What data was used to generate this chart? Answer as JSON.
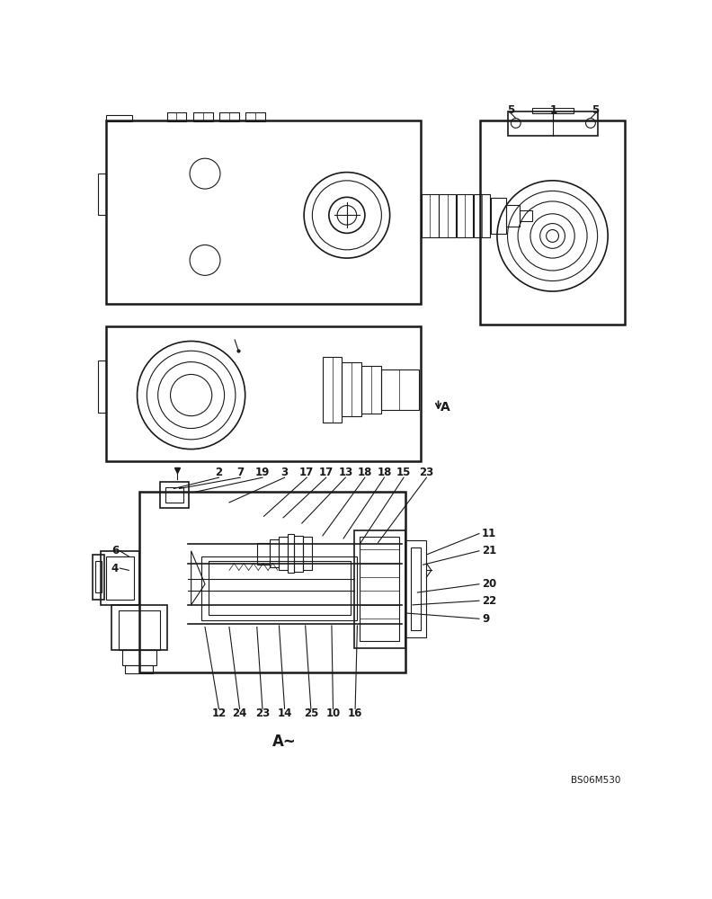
{
  "bg_color": "#ffffff",
  "line_color": "#1a1a1a",
  "dpi": 100,
  "figure_width": 7.92,
  "figure_height": 10.0,
  "watermark": "BS06M530"
}
